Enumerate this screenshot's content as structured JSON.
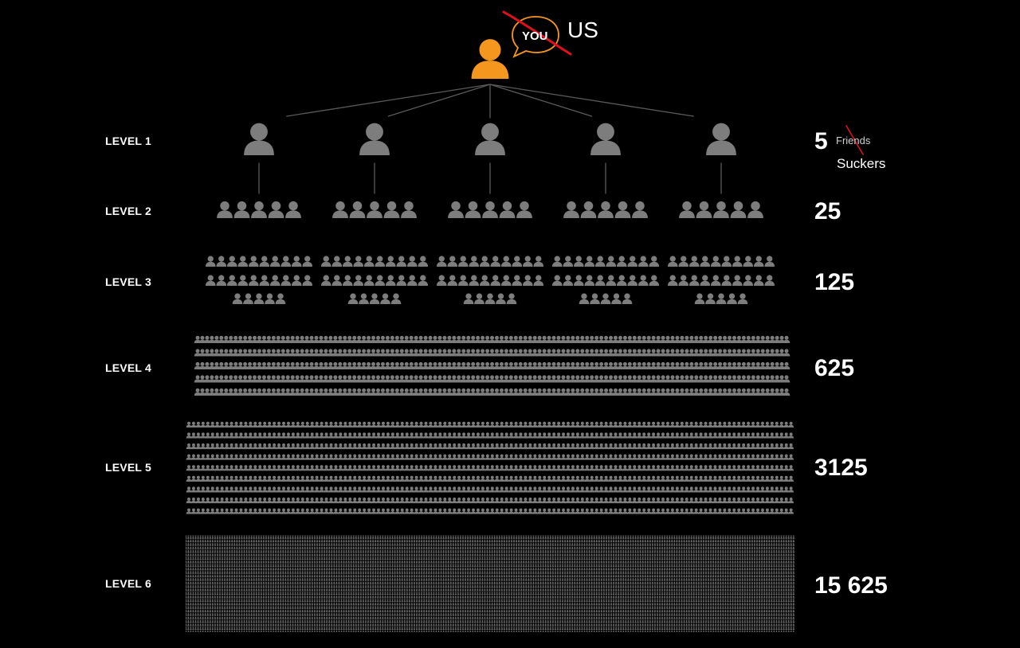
{
  "title_annotation": {
    "speech_bubble": "YOU",
    "replacement": "US"
  },
  "unit_annotation": {
    "original": "Friends",
    "replacement": "Suckers"
  },
  "levels": [
    {
      "label": "LEVEL 1",
      "count": "5",
      "people": 5
    },
    {
      "label": "LEVEL 2",
      "count": "25",
      "people": 25
    },
    {
      "label": "LEVEL 3",
      "count": "125",
      "people": 125
    },
    {
      "label": "LEVEL 4",
      "count": "625",
      "people": 625
    },
    {
      "label": "LEVEL 5",
      "count": "3125",
      "people": 3125
    },
    {
      "label": "LEVEL 6",
      "count": "15 625",
      "people": 15625
    }
  ],
  "colors": {
    "background": "#000000",
    "top_person": "#f5961e",
    "person": "#7d7d7d",
    "connector": "#5a5a5a",
    "strike": "#e0101f",
    "bubble": "#f5961e",
    "text": "#ffffff"
  }
}
